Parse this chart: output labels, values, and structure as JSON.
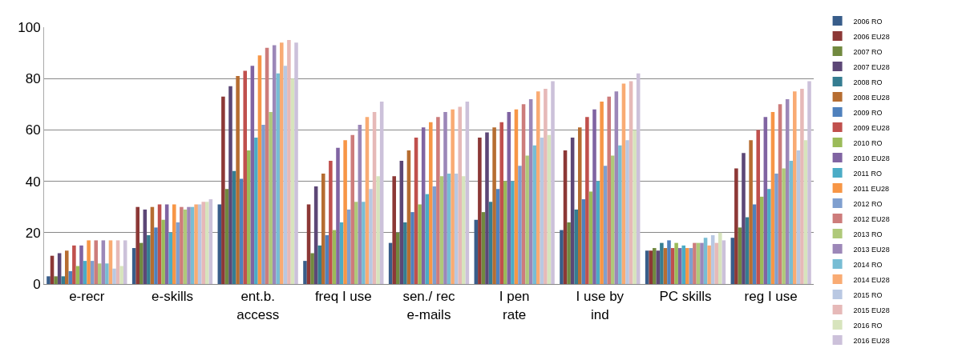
{
  "chart_data": {
    "type": "bar",
    "categories": [
      "e-recr",
      "e-skills",
      "ent.b.\naccess",
      "freq I use",
      "sen./ rec\ne-mails",
      "I pen\nrate",
      "I use by\nind",
      "PC skills",
      "reg I use"
    ],
    "ylim": [
      0,
      100
    ],
    "yticks": [
      0,
      20,
      40,
      60,
      80,
      100
    ],
    "grid": "y",
    "legend": "right",
    "series": [
      {
        "name": "2006 RO",
        "color": "#385d8a",
        "values": [
          3,
          14,
          31,
          9,
          16,
          25,
          21,
          13,
          18
        ]
      },
      {
        "name": "2006 EU28",
        "color": "#8c3836",
        "values": [
          11,
          30,
          73,
          31,
          42,
          57,
          52,
          13,
          45
        ]
      },
      {
        "name": "2007 RO",
        "color": "#71893f",
        "values": [
          3,
          16,
          37,
          12,
          20,
          28,
          24,
          14,
          22
        ]
      },
      {
        "name": "2007 EU28",
        "color": "#5c4776",
        "values": [
          12,
          29,
          77,
          38,
          48,
          59,
          57,
          13,
          51
        ]
      },
      {
        "name": "2008 RO",
        "color": "#357d91",
        "values": [
          3,
          19,
          44,
          15,
          24,
          32,
          29,
          16,
          26
        ]
      },
      {
        "name": "2008 EU28",
        "color": "#b66d31",
        "values": [
          13,
          30,
          81,
          43,
          52,
          61,
          61,
          14,
          56
        ]
      },
      {
        "name": "2009 RO",
        "color": "#4f81bd",
        "values": [
          5,
          22,
          41,
          19,
          28,
          37,
          33,
          17,
          31
        ]
      },
      {
        "name": "2009 EU28",
        "color": "#c0504d",
        "values": [
          15,
          31,
          83,
          48,
          57,
          63,
          65,
          14,
          60
        ]
      },
      {
        "name": "2010 RO",
        "color": "#9bbb59",
        "values": [
          7,
          25,
          52,
          21,
          31,
          40,
          36,
          16,
          34
        ]
      },
      {
        "name": "2010 EU28",
        "color": "#8064a2",
        "values": [
          15,
          31,
          85,
          53,
          61,
          67,
          68,
          14,
          65
        ]
      },
      {
        "name": "2011 RO",
        "color": "#4bacc6",
        "values": [
          9,
          20,
          57,
          24,
          35,
          40,
          40,
          15,
          37
        ]
      },
      {
        "name": "2011 EU28",
        "color": "#f79646",
        "values": [
          17,
          31,
          89,
          56,
          63,
          68,
          71,
          14,
          67
        ]
      },
      {
        "name": "2012 RO",
        "color": "#7f9fcf",
        "values": [
          9,
          24,
          62,
          29,
          38,
          46,
          46,
          14,
          43
        ]
      },
      {
        "name": "2012 EU28",
        "color": "#cd7c7b",
        "values": [
          17,
          30,
          92,
          58,
          65,
          70,
          73,
          16,
          70
        ]
      },
      {
        "name": "2013 RO",
        "color": "#afc97a",
        "values": [
          8,
          29,
          67,
          32,
          42,
          50,
          50,
          16,
          45
        ]
      },
      {
        "name": "2013 EU28",
        "color": "#9c87b8",
        "values": [
          17,
          30,
          93,
          62,
          67,
          72,
          75,
          16,
          72
        ]
      },
      {
        "name": "2014 RO",
        "color": "#78bdd4",
        "values": [
          8,
          30,
          82,
          32,
          43,
          54,
          54,
          18,
          48
        ]
      },
      {
        "name": "2014 EU28",
        "color": "#f9ab73",
        "values": [
          17,
          31,
          94,
          65,
          68,
          75,
          78,
          15,
          75
        ]
      },
      {
        "name": "2015 RO",
        "color": "#b9c8e2",
        "values": [
          6,
          31,
          85,
          37,
          43,
          57,
          56,
          19,
          52
        ]
      },
      {
        "name": "2015 EU28",
        "color": "#e6b9b8",
        "values": [
          17,
          32,
          95,
          67,
          69,
          76,
          79,
          16,
          76
        ]
      },
      {
        "name": "2016 RO",
        "color": "#d7e4bd",
        "values": [
          7,
          32,
          80,
          42,
          42,
          58,
          60,
          20,
          56
        ]
      },
      {
        "name": "2016 EU28",
        "color": "#ccc1da",
        "values": [
          17,
          33,
          94,
          71,
          71,
          79,
          82,
          17,
          79
        ]
      }
    ]
  }
}
